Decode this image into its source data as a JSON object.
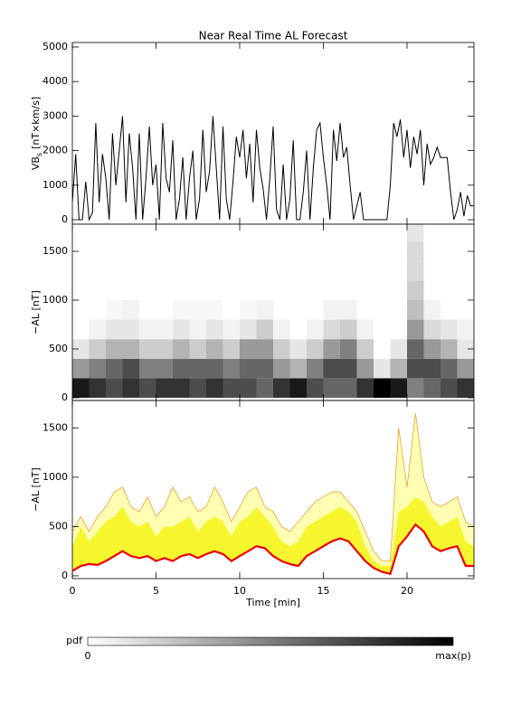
{
  "chart_data": [
    {
      "type": "line",
      "title": "Near Real Time AL Forecast",
      "ylabel": {
        "main": "VB",
        "sub": "s",
        "unit": "[nT×km/s]"
      },
      "xlim": [
        0,
        24
      ],
      "xticks": [
        0,
        5,
        10,
        15,
        20
      ],
      "ylim": [
        -130,
        5130
      ],
      "yticks": [
        0,
        1000,
        2000,
        3000,
        4000,
        5000
      ],
      "color": "#000000",
      "x": [
        0,
        0.2,
        0.4,
        0.6,
        0.8,
        1,
        1.2,
        1.4,
        1.6,
        1.8,
        2,
        2.2,
        2.4,
        2.6,
        2.8,
        3,
        3.2,
        3.4,
        3.6,
        3.8,
        4,
        4.2,
        4.4,
        4.6,
        4.8,
        5,
        5.2,
        5.4,
        5.6,
        5.8,
        6,
        6.2,
        6.4,
        6.6,
        6.8,
        7,
        7.2,
        7.4,
        7.6,
        7.8,
        8,
        8.2,
        8.4,
        8.6,
        8.8,
        9,
        9.2,
        9.4,
        9.6,
        9.8,
        10,
        10.2,
        10.4,
        10.6,
        10.8,
        11,
        11.2,
        11.4,
        11.6,
        11.8,
        12,
        12.2,
        12.4,
        12.6,
        12.8,
        13,
        13.2,
        13.4,
        13.6,
        13.8,
        14,
        14.2,
        14.4,
        14.6,
        14.8,
        15,
        15.2,
        15.4,
        15.6,
        15.8,
        16,
        16.2,
        16.4,
        16.6,
        16.8,
        17,
        17.2,
        17.4,
        17.6,
        17.8,
        18,
        18.2,
        18.4,
        18.6,
        18.8,
        19,
        19.2,
        19.4,
        19.6,
        19.8,
        20,
        20.2,
        20.4,
        20.6,
        20.8,
        21,
        21.2,
        21.4,
        21.6,
        21.8,
        22,
        22.2,
        22.4,
        22.6,
        22.8,
        23,
        23.2,
        23.4,
        23.6,
        23.8,
        24
      ],
      "values": [
        500,
        1900,
        0,
        0,
        1100,
        0,
        200,
        2800,
        500,
        1900,
        1200,
        0,
        2500,
        1000,
        2000,
        3000,
        500,
        2500,
        1500,
        0,
        2500,
        0,
        1200,
        2700,
        1000,
        1600,
        0,
        2800,
        1200,
        800,
        2300,
        0,
        600,
        1800,
        0,
        1200,
        2000,
        0,
        600,
        2600,
        800,
        1400,
        3000,
        1500,
        0,
        2700,
        600,
        0,
        1100,
        2400,
        1800,
        2600,
        1200,
        2200,
        500,
        2600,
        1500,
        900,
        0,
        1200,
        2700,
        300,
        0,
        1600,
        0,
        600,
        2300,
        0,
        0,
        800,
        2000,
        0,
        1500,
        2600,
        2800,
        1800,
        1000,
        0,
        2600,
        1700,
        2800,
        1800,
        2100,
        1000,
        0,
        400,
        800,
        0,
        0,
        0,
        0,
        0,
        0,
        0,
        0,
        1000,
        2800,
        2400,
        2900,
        1800,
        2600,
        1500,
        2400,
        1900,
        2600,
        1000,
        2200,
        1600,
        1800,
        2100,
        1800,
        1800,
        1800,
        800,
        0,
        300,
        800,
        100,
        700,
        400,
        400
      ]
    },
    {
      "type": "heatmap",
      "ylabel": "−AL [nT]",
      "xlim": [
        0,
        24
      ],
      "xticks": [
        0,
        5,
        10,
        15,
        20
      ],
      "ylim": [
        -28,
        1778
      ],
      "yticks": [
        0,
        500,
        1000,
        1500
      ],
      "xbins": [
        0,
        1,
        2,
        3,
        4,
        5,
        6,
        7,
        8,
        9,
        10,
        11,
        12,
        13,
        14,
        15,
        16,
        17,
        18,
        19,
        20,
        21,
        22,
        23,
        24
      ],
      "ybins": [
        0,
        200,
        400,
        600,
        800,
        1000,
        1200,
        1400,
        1600,
        1800
      ],
      "values": [
        [
          0.9,
          0.8,
          0.7,
          0.8,
          0.7,
          0.8,
          0.8,
          0.7,
          0.8,
          0.7,
          0.7,
          0.6,
          0.8,
          0.9,
          0.7,
          0.6,
          0.6,
          0.8,
          1.0,
          0.9,
          0.5,
          0.6,
          0.7,
          0.8
        ],
        [
          0.4,
          0.5,
          0.6,
          0.7,
          0.5,
          0.5,
          0.6,
          0.6,
          0.6,
          0.5,
          0.6,
          0.6,
          0.4,
          0.3,
          0.5,
          0.7,
          0.7,
          0.4,
          0.1,
          0.3,
          0.7,
          0.7,
          0.6,
          0.4
        ],
        [
          0.1,
          0.2,
          0.3,
          0.3,
          0.2,
          0.2,
          0.3,
          0.2,
          0.3,
          0.2,
          0.4,
          0.4,
          0.2,
          0.1,
          0.2,
          0.4,
          0.5,
          0.2,
          0,
          0.1,
          0.6,
          0.4,
          0.3,
          0.1
        ],
        [
          0,
          0.05,
          0.1,
          0.1,
          0.05,
          0.05,
          0.1,
          0.05,
          0.1,
          0.05,
          0.1,
          0.2,
          0.05,
          0,
          0.05,
          0.15,
          0.2,
          0.05,
          0,
          0,
          0.4,
          0.15,
          0.1,
          0.05
        ],
        [
          0,
          0,
          0.03,
          0.05,
          0,
          0,
          0.03,
          0.03,
          0.03,
          0,
          0.03,
          0.05,
          0,
          0,
          0,
          0.05,
          0.05,
          0,
          0,
          0,
          0.25,
          0.05,
          0,
          0
        ],
        [
          0,
          0,
          0,
          0,
          0,
          0,
          0,
          0,
          0,
          0,
          0,
          0,
          0,
          0,
          0,
          0,
          0,
          0,
          0,
          0,
          0.2,
          0,
          0,
          0
        ],
        [
          0,
          0,
          0,
          0,
          0,
          0,
          0,
          0,
          0,
          0,
          0,
          0,
          0,
          0,
          0,
          0,
          0,
          0,
          0,
          0,
          0.15,
          0,
          0,
          0
        ],
        [
          0,
          0,
          0,
          0,
          0,
          0,
          0,
          0,
          0,
          0,
          0,
          0,
          0,
          0,
          0,
          0,
          0,
          0,
          0,
          0,
          0.15,
          0,
          0,
          0
        ],
        [
          0,
          0,
          0,
          0,
          0,
          0,
          0,
          0,
          0,
          0,
          0,
          0,
          0,
          0,
          0,
          0,
          0,
          0,
          0,
          0,
          0.1,
          0,
          0,
          0
        ]
      ]
    },
    {
      "type": "band",
      "ylabel": "−AL [nT]",
      "xlabel": "Time [min]",
      "xlim": [
        0,
        24
      ],
      "xticks": [
        0,
        5,
        10,
        15,
        20
      ],
      "ylim": [
        -28,
        1778
      ],
      "yticks": [
        0,
        500,
        1000,
        1500
      ],
      "x": [
        0,
        0.5,
        1,
        1.5,
        2,
        2.5,
        3,
        3.5,
        4,
        4.5,
        5,
        5.5,
        6,
        6.5,
        7,
        7.5,
        8,
        8.5,
        9,
        9.5,
        10,
        10.5,
        11,
        11.5,
        12,
        12.5,
        13,
        13.5,
        14,
        14.5,
        15,
        15.5,
        16,
        16.5,
        17,
        17.5,
        18,
        18.5,
        19,
        19.5,
        20,
        20.5,
        21,
        21.5,
        22,
        22.5,
        23,
        23.5,
        24
      ],
      "series": [
        {
          "color": "#ee0000",
          "values": [
            50,
            100,
            120,
            110,
            150,
            200,
            250,
            200,
            180,
            200,
            150,
            180,
            150,
            200,
            220,
            180,
            220,
            250,
            220,
            150,
            200,
            250,
            300,
            280,
            200,
            150,
            120,
            100,
            200,
            250,
            300,
            350,
            380,
            350,
            250,
            150,
            80,
            40,
            20,
            300,
            400,
            520,
            450,
            300,
            250,
            280,
            300,
            100,
            100
          ]
        },
        {
          "color": "#f6f62e",
          "values": [
            300,
            500,
            350,
            450,
            550,
            600,
            700,
            550,
            500,
            550,
            400,
            500,
            500,
            550,
            600,
            450,
            550,
            600,
            550,
            400,
            550,
            600,
            700,
            600,
            500,
            350,
            300,
            350,
            500,
            550,
            600,
            650,
            700,
            650,
            550,
            300,
            150,
            100,
            100,
            650,
            700,
            800,
            750,
            600,
            500,
            550,
            600,
            350,
            300
          ]
        },
        {
          "color": "#ffffb4",
          "edge_color": "#f0a030",
          "values": [
            450,
            600,
            450,
            600,
            700,
            850,
            900,
            700,
            650,
            800,
            600,
            700,
            900,
            750,
            800,
            650,
            700,
            900,
            750,
            550,
            700,
            850,
            900,
            700,
            650,
            500,
            450,
            550,
            650,
            750,
            800,
            850,
            850,
            750,
            650,
            450,
            250,
            150,
            150,
            1500,
            900,
            1650,
            1000,
            750,
            700,
            750,
            800,
            550,
            500
          ]
        }
      ]
    }
  ],
  "colorbar": {
    "label": "pdf",
    "min_label": "0",
    "max_label": "max(p)"
  }
}
